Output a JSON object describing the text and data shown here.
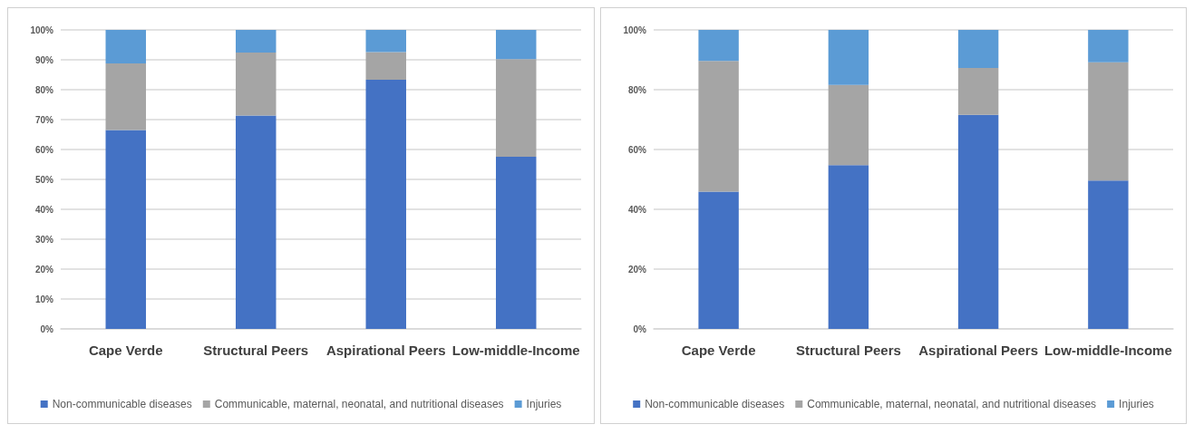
{
  "chart_data": [
    {
      "type": "bar",
      "stacked": true,
      "categories": [
        "Cape Verde",
        "Structural Peers",
        "Aspirational Peers",
        "Low-middle-Income"
      ],
      "series": [
        {
          "name": "Non-communicable diseases",
          "color": "#4472c4",
          "values": [
            66.5,
            71.4,
            83.3,
            57.6
          ]
        },
        {
          "name": "Communicable, maternal, neonatal, and nutritional diseases",
          "color": "#a5a5a5",
          "values": [
            22.3,
            21.0,
            9.3,
            32.6
          ]
        },
        {
          "name": "Injuries",
          "color": "#5b9bd5",
          "values": [
            11.2,
            7.6,
            7.4,
            9.8
          ]
        }
      ],
      "ylim": [
        0,
        100
      ],
      "yticks": [
        {
          "value": 0,
          "label": "0%"
        },
        {
          "value": 10,
          "label": "10%"
        },
        {
          "value": 20,
          "label": "20%"
        },
        {
          "value": 30,
          "label": "30%"
        },
        {
          "value": 40,
          "label": "40%"
        },
        {
          "value": 50,
          "label": "50%"
        },
        {
          "value": 60,
          "label": "60%"
        },
        {
          "value": 70,
          "label": "70%"
        },
        {
          "value": 80,
          "label": "80%"
        },
        {
          "value": 90,
          "label": "90%"
        },
        {
          "value": 100,
          "label": "100%"
        }
      ],
      "grid": "y",
      "legend": "bottom"
    },
    {
      "type": "bar",
      "stacked": true,
      "categories": [
        "Cape Verde",
        "Structural Peers",
        "Aspirational Peers",
        "Low-middle-Income"
      ],
      "series": [
        {
          "name": "Non-communicable diseases",
          "color": "#4472c4",
          "values": [
            45.9,
            54.8,
            71.6,
            49.6
          ]
        },
        {
          "name": "Communicable, maternal, neonatal, and nutritional diseases",
          "color": "#a5a5a5",
          "values": [
            43.7,
            26.8,
            15.7,
            39.6
          ]
        },
        {
          "name": "Injuries",
          "color": "#5b9bd5",
          "values": [
            10.4,
            18.4,
            12.7,
            10.8
          ]
        }
      ],
      "ylim": [
        0,
        100
      ],
      "yticks": [
        {
          "value": 0,
          "label": "0%"
        },
        {
          "value": 20,
          "label": "20%"
        },
        {
          "value": 40,
          "label": "40%"
        },
        {
          "value": 60,
          "label": "60%"
        },
        {
          "value": 80,
          "label": "80%"
        },
        {
          "value": 100,
          "label": "100%"
        }
      ],
      "grid": "y",
      "legend": "bottom"
    }
  ]
}
